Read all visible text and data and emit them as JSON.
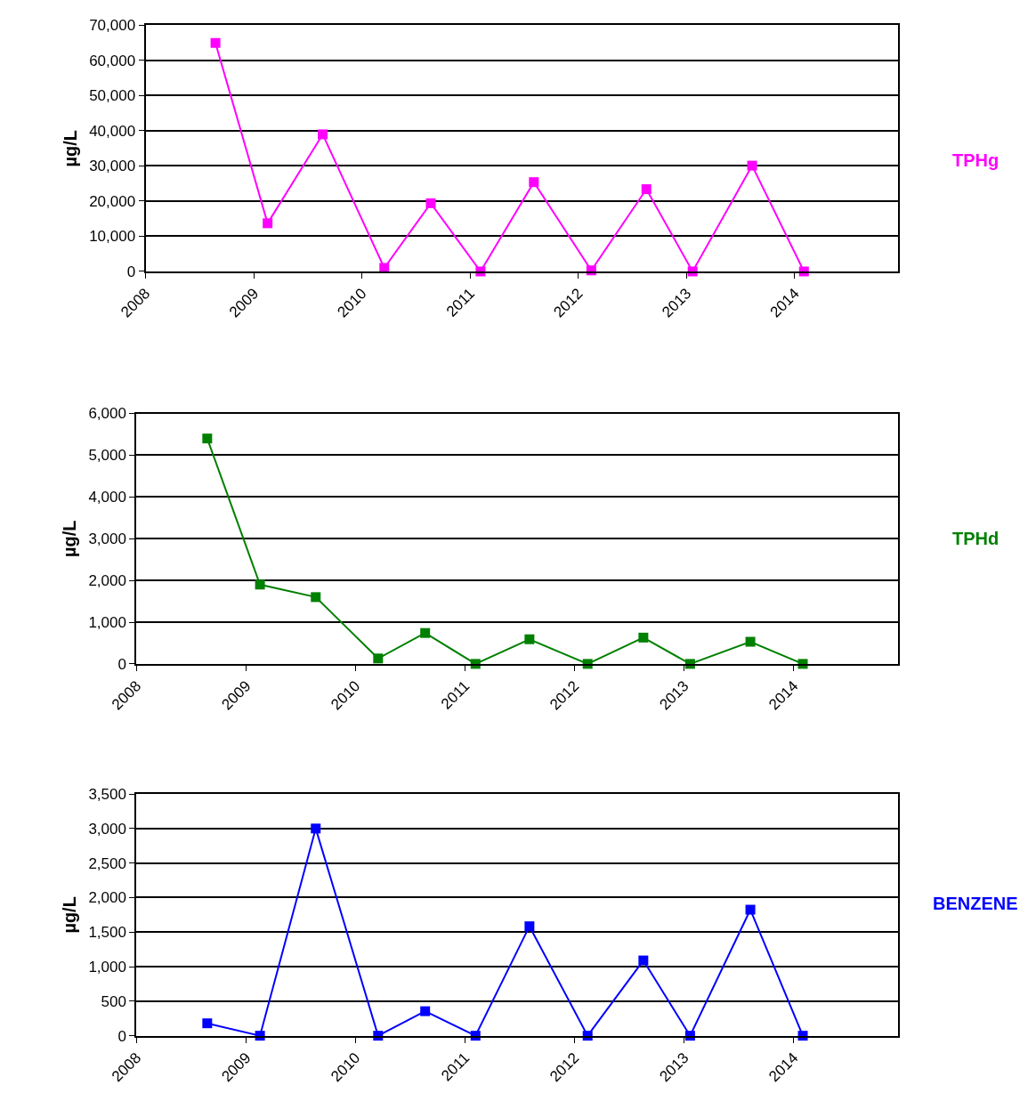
{
  "chart_data": [
    {
      "type": "line",
      "ylabel": "µg/L",
      "marker": "square",
      "grid": "y",
      "x": [
        "2008-08-24",
        "2009-02-16",
        "2009-08-21",
        "2010-03-17",
        "2010-08-21",
        "2011-02-05",
        "2011-08-04",
        "2012-02-14",
        "2012-08-18",
        "2013-01-21",
        "2013-08-10",
        "2014-02-01"
      ],
      "series": [
        {
          "name": "TPHg",
          "color": "#ff00ff",
          "values": [
            65000,
            13700,
            39000,
            1000,
            19400,
            0,
            25400,
            300,
            23400,
            0,
            30100,
            0
          ]
        }
      ],
      "xlim": [
        "2008-01-01",
        "2014-12-15"
      ],
      "xticks": [
        "2008",
        "2009",
        "2010",
        "2011",
        "2012",
        "2013",
        "2014"
      ],
      "ylim": [
        0,
        70000
      ],
      "yticks": [
        0,
        {
          "value": 10000,
          "label": "10,000"
        },
        {
          "value": 20000,
          "label": "20,000"
        },
        {
          "value": 30000,
          "label": "30,000"
        },
        {
          "value": 40000,
          "label": "40,000"
        },
        {
          "value": 50000,
          "label": "50,000"
        },
        {
          "value": 60000,
          "label": "60,000"
        },
        {
          "value": 70000,
          "label": "70,000"
        }
      ]
    },
    {
      "type": "line",
      "ylabel": "µg/L",
      "marker": "square",
      "grid": "y",
      "x": [
        "2008-08-24",
        "2009-02-16",
        "2009-08-21",
        "2010-03-17",
        "2010-08-21",
        "2011-02-05",
        "2011-08-04",
        "2012-02-14",
        "2012-08-18",
        "2013-01-21",
        "2013-08-10",
        "2014-02-01"
      ],
      "series": [
        {
          "name": "TPHd",
          "color": "#008000",
          "values": [
            5400,
            1900,
            1600,
            130,
            740,
            0,
            590,
            0,
            630,
            0,
            530,
            0
          ]
        }
      ],
      "xlim": [
        "2008-01-01",
        "2014-12-15"
      ],
      "xticks": [
        "2008",
        "2009",
        "2010",
        "2011",
        "2012",
        "2013",
        "2014"
      ],
      "ylim": [
        0,
        6000
      ],
      "yticks": [
        0,
        {
          "value": 1000,
          "label": "1,000"
        },
        {
          "value": 2000,
          "label": "2,000"
        },
        {
          "value": 3000,
          "label": "3,000"
        },
        {
          "value": 4000,
          "label": "4,000"
        },
        {
          "value": 5000,
          "label": "5,000"
        },
        {
          "value": 6000,
          "label": "6,000"
        }
      ]
    },
    {
      "type": "line",
      "ylabel": "µg/L",
      "marker": "square",
      "grid": "y",
      "x": [
        "2008-08-24",
        "2009-02-16",
        "2009-08-21",
        "2010-03-17",
        "2010-08-21",
        "2011-02-05",
        "2011-08-04",
        "2012-02-14",
        "2012-08-18",
        "2013-01-21",
        "2013-08-10",
        "2014-02-01"
      ],
      "series": [
        {
          "name": "BENZENE",
          "color": "#0000ff",
          "values": [
            180,
            0,
            3000,
            0,
            355,
            0,
            1585,
            0,
            1090,
            0,
            1825,
            0
          ]
        }
      ],
      "xlim": [
        "2008-01-01",
        "2014-12-15"
      ],
      "xticks": [
        "2008",
        "2009",
        "2010",
        "2011",
        "2012",
        "2013",
        "2014"
      ],
      "ylim": [
        0,
        3500
      ],
      "yticks": [
        0,
        500,
        {
          "value": 1000,
          "label": "1,000"
        },
        {
          "value": 1500,
          "label": "1,500"
        },
        {
          "value": 2000,
          "label": "2,000"
        },
        {
          "value": 2500,
          "label": "2,500"
        },
        {
          "value": 3000,
          "label": "3,000"
        },
        {
          "value": 3500,
          "label": "3,500"
        }
      ]
    }
  ]
}
